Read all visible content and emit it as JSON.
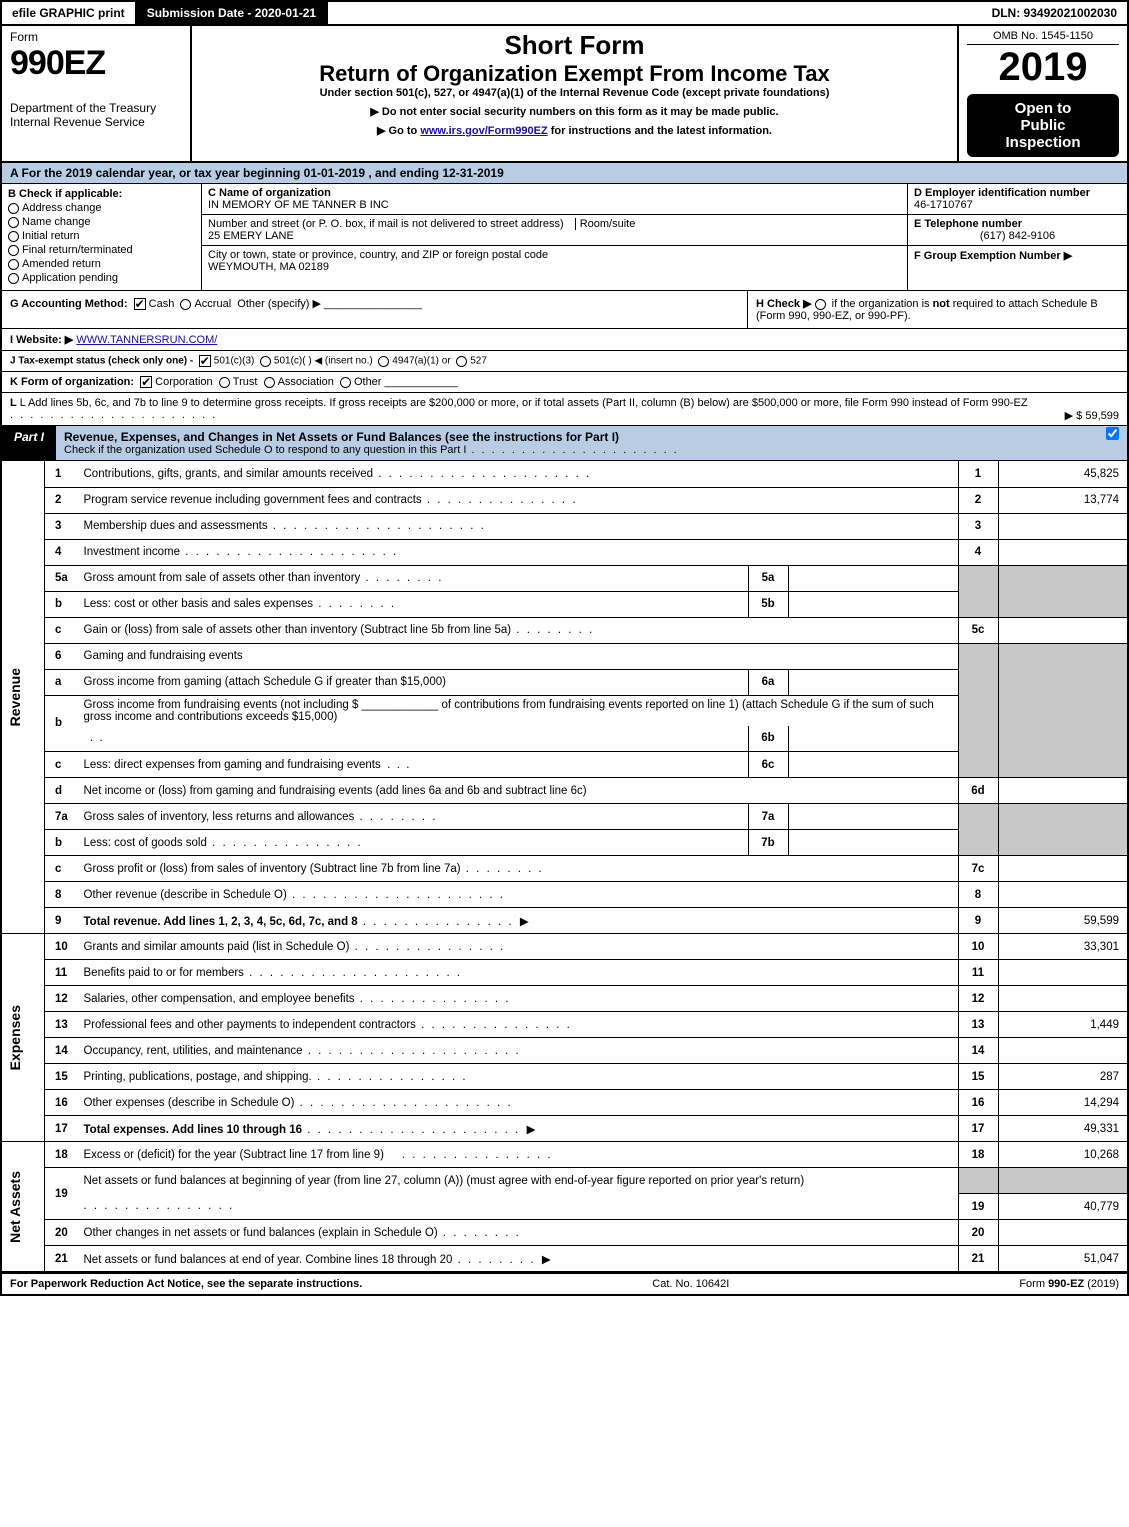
{
  "topbar": {
    "efile": "efile GRAPHIC print",
    "submission": "Submission Date - 2020-01-21",
    "dln": "DLN: 93492021002030"
  },
  "header": {
    "form_word": "Form",
    "form_no": "990EZ",
    "dept1": "Department of the Treasury",
    "dept2": "Internal Revenue Service",
    "title_short": "Short Form",
    "title_main": "Return of Organization Exempt From Income Tax",
    "subtitle": "Under section 501(c), 527, or 4947(a)(1) of the Internal Revenue Code (except private foundations)",
    "note1_pre": "▶ Do not enter social security numbers on this form as it may be made public.",
    "note2_pre": "▶ Go to ",
    "note2_link": "www.irs.gov/Form990EZ",
    "note2_post": " for instructions and the latest information.",
    "omb": "OMB No. 1545-1150",
    "year": "2019",
    "open1": "Open to",
    "open2": "Public",
    "open3": "Inspection"
  },
  "rowA": "A  For the 2019 calendar year, or tax year beginning 01-01-2019 , and ending 12-31-2019",
  "colB": {
    "hdr": "B  Check if applicable:",
    "opts": [
      "Address change",
      "Name change",
      "Initial return",
      "Final return/terminated",
      "Amended return",
      "Application pending"
    ]
  },
  "colC": {
    "c_label": "C Name of organization",
    "c_val": "IN MEMORY OF ME TANNER B INC",
    "addr_label": "Number and street (or P. O. box, if mail is not delivered to street address)",
    "addr_val": "25 EMERY LANE",
    "room_label": "Room/suite",
    "city_label": "City or town, state or province, country, and ZIP or foreign postal code",
    "city_val": "WEYMOUTH, MA  02189"
  },
  "colD": {
    "d_label": "D Employer identification number",
    "d_val": "46-1710767",
    "e_label": "E Telephone number",
    "e_val": "(617) 842-9106",
    "f_label": "F Group Exemption Number  ▶"
  },
  "rowG": {
    "g": "G Accounting Method:",
    "g_cash": "Cash",
    "g_accrual": "Accrual",
    "g_other": "Other (specify) ▶",
    "h": "H  Check ▶",
    "h_txt": "if the organization is ",
    "h_not": "not",
    "h_txt2": " required to attach Schedule B (Form 990, 990-EZ, or 990-PF).",
    "i": "I Website: ▶",
    "i_val": "WWW.TANNERSRUN.COM/",
    "j": "J Tax-exempt status (check only one) -",
    "j_501c3": "501(c)(3)",
    "j_501c": "501(c)( )  ◀ (insert no.)",
    "j_4947": "4947(a)(1) or",
    "j_527": "527",
    "k": "K Form of organization:",
    "k_opts": [
      "Corporation",
      "Trust",
      "Association",
      "Other"
    ],
    "l": "L Add lines 5b, 6c, and 7b to line 9 to determine gross receipts. If gross receipts are $200,000 or more, or if total assets (Part II, column (B) below) are $500,000 or more, file Form 990 instead of Form 990-EZ",
    "l_arrow": "▶ $ 59,599"
  },
  "part1": {
    "tab": "Part I",
    "title": "Revenue, Expenses, and Changes in Net Assets or Fund Balances (see the instructions for Part I)",
    "sub": "Check if the organization used Schedule O to respond to any question in this Part I"
  },
  "sections": {
    "revenue": "Revenue",
    "expenses": "Expenses",
    "netassets": "Net Assets"
  },
  "lines": {
    "l1": {
      "n": "1",
      "d": "Contributions, gifts, grants, and similar amounts received",
      "rn": "1",
      "rv": "45,825"
    },
    "l2": {
      "n": "2",
      "d": "Program service revenue including government fees and contracts",
      "rn": "2",
      "rv": "13,774"
    },
    "l3": {
      "n": "3",
      "d": "Membership dues and assessments",
      "rn": "3",
      "rv": ""
    },
    "l4": {
      "n": "4",
      "d": "Investment income",
      "rn": "4",
      "rv": ""
    },
    "l5a": {
      "n": "5a",
      "d": "Gross amount from sale of assets other than inventory",
      "mn": "5a"
    },
    "l5b": {
      "n": "b",
      "d": "Less: cost or other basis and sales expenses",
      "mn": "5b"
    },
    "l5c": {
      "n": "c",
      "d": "Gain or (loss) from sale of assets other than inventory (Subtract line 5b from line 5a)",
      "rn": "5c",
      "rv": ""
    },
    "l6": {
      "n": "6",
      "d": "Gaming and fundraising events"
    },
    "l6a": {
      "n": "a",
      "d": "Gross income from gaming (attach Schedule G if greater than $15,000)",
      "mn": "6a"
    },
    "l6b": {
      "n": "b",
      "d": "Gross income from fundraising events (not including $",
      "d2": "of contributions from fundraising events reported on line 1) (attach Schedule G if the sum of such gross income and contributions exceeds $15,000)",
      "mn": "6b"
    },
    "l6c": {
      "n": "c",
      "d": "Less: direct expenses from gaming and fundraising events",
      "mn": "6c"
    },
    "l6d": {
      "n": "d",
      "d": "Net income or (loss) from gaming and fundraising events (add lines 6a and 6b and subtract line 6c)",
      "rn": "6d",
      "rv": ""
    },
    "l7a": {
      "n": "7a",
      "d": "Gross sales of inventory, less returns and allowances",
      "mn": "7a"
    },
    "l7b": {
      "n": "b",
      "d": "Less: cost of goods sold",
      "mn": "7b"
    },
    "l7c": {
      "n": "c",
      "d": "Gross profit or (loss) from sales of inventory (Subtract line 7b from line 7a)",
      "rn": "7c",
      "rv": ""
    },
    "l8": {
      "n": "8",
      "d": "Other revenue (describe in Schedule O)",
      "rn": "8",
      "rv": ""
    },
    "l9": {
      "n": "9",
      "d": "Total revenue. Add lines 1, 2, 3, 4, 5c, 6d, 7c, and 8",
      "rn": "9",
      "rv": "59,599",
      "bold": true,
      "arrow": true
    },
    "l10": {
      "n": "10",
      "d": "Grants and similar amounts paid (list in Schedule O)",
      "rn": "10",
      "rv": "33,301"
    },
    "l11": {
      "n": "11",
      "d": "Benefits paid to or for members",
      "rn": "11",
      "rv": ""
    },
    "l12": {
      "n": "12",
      "d": "Salaries, other compensation, and employee benefits",
      "rn": "12",
      "rv": ""
    },
    "l13": {
      "n": "13",
      "d": "Professional fees and other payments to independent contractors",
      "rn": "13",
      "rv": "1,449"
    },
    "l14": {
      "n": "14",
      "d": "Occupancy, rent, utilities, and maintenance",
      "rn": "14",
      "rv": ""
    },
    "l15": {
      "n": "15",
      "d": "Printing, publications, postage, and shipping.",
      "rn": "15",
      "rv": "287"
    },
    "l16": {
      "n": "16",
      "d": "Other expenses (describe in Schedule O)",
      "rn": "16",
      "rv": "14,294"
    },
    "l17": {
      "n": "17",
      "d": "Total expenses. Add lines 10 through 16",
      "rn": "17",
      "rv": "49,331",
      "bold": true,
      "arrow": true
    },
    "l18": {
      "n": "18",
      "d": "Excess or (deficit) for the year (Subtract line 17 from line 9)",
      "rn": "18",
      "rv": "10,268"
    },
    "l19": {
      "n": "19",
      "d": "Net assets or fund balances at beginning of year (from line 27, column (A)) (must agree with end-of-year figure reported on prior year's return)",
      "rn": "19",
      "rv": "40,779"
    },
    "l20": {
      "n": "20",
      "d": "Other changes in net assets or fund balances (explain in Schedule O)",
      "rn": "20",
      "rv": ""
    },
    "l21": {
      "n": "21",
      "d": "Net assets or fund balances at end of year. Combine lines 18 through 20",
      "rn": "21",
      "rv": "51,047"
    }
  },
  "footer": {
    "l": "For Paperwork Reduction Act Notice, see the separate instructions.",
    "c": "Cat. No. 10642I",
    "r": "Form 990-EZ (2019)"
  },
  "colors": {
    "header_blue": "#b8cce4",
    "shade_gray": "#c8c8c8",
    "link": "#1a0dab"
  }
}
